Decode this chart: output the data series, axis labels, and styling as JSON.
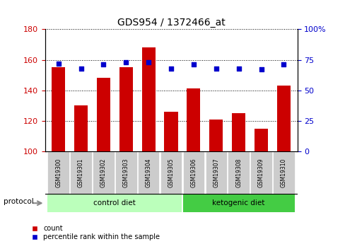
{
  "title": "GDS954 / 1372466_at",
  "samples": [
    "GSM19300",
    "GSM19301",
    "GSM19302",
    "GSM19303",
    "GSM19304",
    "GSM19305",
    "GSM19306",
    "GSM19307",
    "GSM19308",
    "GSM19309",
    "GSM19310"
  ],
  "counts": [
    155,
    130,
    148,
    155,
    168,
    126,
    141,
    121,
    125,
    115,
    143
  ],
  "percentile_ranks": [
    72,
    68,
    71,
    73,
    73,
    68,
    71,
    68,
    68,
    67,
    71
  ],
  "ylim_left": [
    100,
    180
  ],
  "ylim_right": [
    0,
    100
  ],
  "yticks_left": [
    100,
    120,
    140,
    160,
    180
  ],
  "yticks_right": [
    0,
    25,
    50,
    75,
    100
  ],
  "bar_color": "#cc0000",
  "dot_color": "#0000cc",
  "groups": [
    {
      "label": "control diet",
      "indices": [
        0,
        1,
        2,
        3,
        4,
        5
      ],
      "color": "#bbffbb"
    },
    {
      "label": "ketogenic diet",
      "indices": [
        6,
        7,
        8,
        9,
        10
      ],
      "color": "#44cc44"
    }
  ],
  "protocol_label": "protocol",
  "tick_bg_color": "#cccccc",
  "grid_color": "#000000",
  "left_axis_color": "#cc0000",
  "right_axis_color": "#0000cc",
  "bar_width": 0.6,
  "figsize": [
    4.89,
    3.45
  ],
  "dpi": 100
}
